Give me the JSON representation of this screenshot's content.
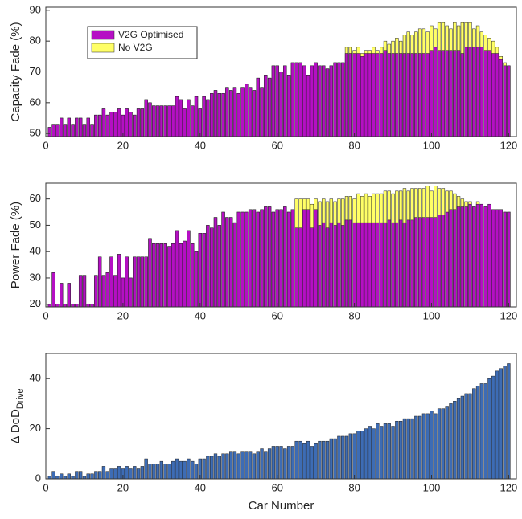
{
  "chart_data": [
    {
      "type": "bar",
      "ylabel": "Capacity Fade (%)",
      "legend": "upper left",
      "x": [
        1,
        2,
        3,
        4,
        5,
        6,
        7,
        8,
        9,
        10,
        11,
        12,
        13,
        14,
        15,
        16,
        17,
        18,
        19,
        20,
        21,
        22,
        23,
        24,
        25,
        26,
        27,
        28,
        29,
        30,
        31,
        32,
        33,
        34,
        35,
        36,
        37,
        38,
        39,
        40,
        41,
        42,
        43,
        44,
        45,
        46,
        47,
        48,
        49,
        50,
        51,
        52,
        53,
        54,
        55,
        56,
        57,
        58,
        59,
        60,
        61,
        62,
        63,
        64,
        65,
        66,
        67,
        68,
        69,
        70,
        71,
        72,
        73,
        74,
        75,
        76,
        77,
        78,
        79,
        80,
        81,
        82,
        83,
        84,
        85,
        86,
        87,
        88,
        89,
        90,
        91,
        92,
        93,
        94,
        95,
        96,
        97,
        98,
        99,
        100,
        101,
        102,
        103,
        104,
        105,
        106,
        107,
        108,
        109,
        110,
        111,
        112,
        113,
        114,
        115,
        116,
        117,
        118,
        119,
        120
      ],
      "series": [
        {
          "name": "V2G Optimised",
          "color": "#b50fc4",
          "values": [
            52,
            53,
            53,
            55,
            53,
            55,
            53,
            55,
            55,
            53,
            55,
            53,
            56,
            56,
            58,
            56,
            57,
            57,
            58,
            56,
            58,
            57,
            56,
            58,
            58,
            61,
            60,
            59,
            59,
            59,
            59,
            59,
            59,
            62,
            61,
            58,
            61,
            59,
            62,
            58,
            62,
            61,
            63,
            64,
            63,
            63,
            65,
            64,
            65,
            63,
            65,
            66,
            65,
            64,
            68,
            65,
            69,
            68,
            72,
            72,
            70,
            72,
            69,
            73,
            73,
            73,
            72,
            69,
            72,
            73,
            72,
            72,
            71,
            72,
            73,
            73,
            73,
            76,
            76,
            76,
            76,
            75,
            76,
            76,
            76,
            76,
            76,
            77,
            76,
            76,
            76,
            76,
            76,
            76,
            76,
            76,
            76,
            76,
            76,
            77,
            78,
            77,
            77,
            77,
            77,
            77,
            77,
            76,
            78,
            78,
            78,
            78,
            78,
            77,
            77,
            76,
            76,
            74,
            72,
            72
          ]
        },
        {
          "name": "No V2G",
          "color": "#ffff66",
          "values": [
            52,
            53,
            53,
            55,
            53,
            55,
            53,
            55,
            55,
            53,
            55,
            53,
            56,
            56,
            58,
            56,
            57,
            57,
            58,
            56,
            58,
            57,
            56,
            58,
            58,
            61,
            60,
            59,
            59,
            59,
            59,
            59,
            59,
            62,
            61,
            58,
            61,
            59,
            62,
            58,
            62,
            61,
            63,
            64,
            63,
            63,
            65,
            64,
            65,
            63,
            65,
            66,
            65,
            64,
            68,
            65,
            69,
            68,
            72,
            72,
            70,
            72,
            69,
            73,
            73,
            73,
            72,
            69,
            72,
            73,
            72,
            72,
            71,
            72,
            73,
            73,
            73,
            78,
            78,
            77,
            78,
            76,
            77,
            77,
            78,
            77,
            78,
            80,
            79,
            80,
            81,
            80,
            82,
            83,
            82,
            83,
            84,
            84,
            83,
            85,
            84,
            86,
            86,
            85,
            84,
            86,
            85,
            86,
            86,
            86,
            84,
            85,
            83,
            82,
            81,
            80,
            78,
            75,
            73,
            72
          ]
        }
      ],
      "xlim": [
        0,
        122
      ],
      "ylim": [
        49,
        91
      ],
      "xticks": [
        0,
        20,
        40,
        60,
        80,
        100,
        120
      ],
      "yticks": [
        50,
        60,
        70,
        80,
        90
      ]
    },
    {
      "type": "bar",
      "ylabel": "Power Fade (%)",
      "x": [
        1,
        2,
        3,
        4,
        5,
        6,
        7,
        8,
        9,
        10,
        11,
        12,
        13,
        14,
        15,
        16,
        17,
        18,
        19,
        20,
        21,
        22,
        23,
        24,
        25,
        26,
        27,
        28,
        29,
        30,
        31,
        32,
        33,
        34,
        35,
        36,
        37,
        38,
        39,
        40,
        41,
        42,
        43,
        44,
        45,
        46,
        47,
        48,
        49,
        50,
        51,
        52,
        53,
        54,
        55,
        56,
        57,
        58,
        59,
        60,
        61,
        62,
        63,
        64,
        65,
        66,
        67,
        68,
        69,
        70,
        71,
        72,
        73,
        74,
        75,
        76,
        77,
        78,
        79,
        80,
        81,
        82,
        83,
        84,
        85,
        86,
        87,
        88,
        89,
        90,
        91,
        92,
        93,
        94,
        95,
        96,
        97,
        98,
        99,
        100,
        101,
        102,
        103,
        104,
        105,
        106,
        107,
        108,
        109,
        110,
        111,
        112,
        113,
        114,
        115,
        116,
        117,
        118,
        119,
        120
      ],
      "series": [
        {
          "name": "V2G Optimised",
          "color": "#b50fc4",
          "values": [
            20,
            32,
            20,
            28,
            20,
            28,
            20,
            20,
            31,
            31,
            20,
            20,
            31,
            38,
            31,
            32,
            38,
            31,
            39,
            30,
            38,
            30,
            38,
            38,
            38,
            38,
            45,
            43,
            43,
            43,
            43,
            42,
            43,
            48,
            43,
            44,
            48,
            43,
            40,
            47,
            47,
            50,
            49,
            53,
            50,
            55,
            53,
            53,
            51,
            55,
            55,
            55,
            56,
            56,
            55,
            56,
            57,
            57,
            55,
            56,
            56,
            57,
            55,
            56,
            49,
            49,
            56,
            56,
            49,
            56,
            50,
            51,
            49,
            51,
            50,
            51,
            50,
            52,
            52,
            51,
            51,
            51,
            51,
            51,
            51,
            51,
            51,
            51,
            52,
            51,
            51,
            52,
            51,
            52,
            52,
            53,
            53,
            53,
            53,
            53,
            53,
            54,
            54,
            55,
            56,
            56,
            57,
            57,
            57,
            58,
            57,
            58,
            58,
            57,
            58,
            56,
            56,
            56,
            55,
            55
          ]
        },
        {
          "name": "No V2G",
          "color": "#ffff66",
          "values": [
            20,
            32,
            20,
            28,
            20,
            28,
            20,
            20,
            31,
            31,
            20,
            20,
            31,
            38,
            31,
            32,
            38,
            31,
            39,
            30,
            38,
            30,
            38,
            38,
            38,
            38,
            45,
            43,
            43,
            43,
            43,
            42,
            43,
            48,
            43,
            44,
            48,
            43,
            40,
            47,
            47,
            50,
            49,
            53,
            50,
            55,
            53,
            53,
            51,
            55,
            55,
            55,
            56,
            56,
            55,
            56,
            57,
            57,
            55,
            56,
            56,
            57,
            55,
            56,
            60,
            60,
            60,
            60,
            58,
            60,
            59,
            60,
            59,
            60,
            59,
            60,
            60,
            61,
            61,
            60,
            62,
            61,
            62,
            61,
            62,
            62,
            62,
            63,
            63,
            62,
            63,
            63,
            64,
            63,
            64,
            64,
            64,
            64,
            65,
            63,
            65,
            64,
            64,
            63,
            63,
            62,
            61,
            60,
            59,
            59,
            57,
            59,
            58,
            57,
            57,
            56,
            56,
            56,
            55,
            55
          ]
        }
      ],
      "xlim": [
        0,
        122
      ],
      "ylim": [
        19,
        66
      ],
      "xticks": [
        0,
        20,
        40,
        60,
        80,
        100,
        120
      ],
      "yticks": [
        20,
        30,
        40,
        50,
        60
      ]
    },
    {
      "type": "bar",
      "ylabel": "Δ DoD",
      "ylabel_subscript": "Drive",
      "xlabel": "Car Number",
      "x": [
        1,
        2,
        3,
        4,
        5,
        6,
        7,
        8,
        9,
        10,
        11,
        12,
        13,
        14,
        15,
        16,
        17,
        18,
        19,
        20,
        21,
        22,
        23,
        24,
        25,
        26,
        27,
        28,
        29,
        30,
        31,
        32,
        33,
        34,
        35,
        36,
        37,
        38,
        39,
        40,
        41,
        42,
        43,
        44,
        45,
        46,
        47,
        48,
        49,
        50,
        51,
        52,
        53,
        54,
        55,
        56,
        57,
        58,
        59,
        60,
        61,
        62,
        63,
        64,
        65,
        66,
        67,
        68,
        69,
        70,
        71,
        72,
        73,
        74,
        75,
        76,
        77,
        78,
        79,
        80,
        81,
        82,
        83,
        84,
        85,
        86,
        87,
        88,
        89,
        90,
        91,
        92,
        93,
        94,
        95,
        96,
        97,
        98,
        99,
        100,
        101,
        102,
        103,
        104,
        105,
        106,
        107,
        108,
        109,
        110,
        111,
        112,
        113,
        114,
        115,
        116,
        117,
        118,
        119,
        120
      ],
      "series": [
        {
          "name": "Δ DoD",
          "color": "#3d6cb5",
          "values": [
            1,
            3,
            1,
            2,
            1,
            2,
            1,
            3,
            3,
            1,
            2,
            2,
            3,
            3,
            5,
            3,
            4,
            4,
            5,
            4,
            5,
            4,
            5,
            4,
            5,
            8,
            6,
            6,
            6,
            7,
            6,
            6,
            7,
            8,
            7,
            7,
            8,
            7,
            6,
            8,
            8,
            9,
            9,
            10,
            9,
            10,
            10,
            11,
            11,
            10,
            11,
            11,
            11,
            10,
            11,
            12,
            11,
            12,
            13,
            13,
            13,
            12,
            13,
            13,
            15,
            15,
            14,
            15,
            13,
            14,
            15,
            15,
            15,
            16,
            16,
            17,
            17,
            17,
            18,
            18,
            19,
            19,
            20,
            21,
            20,
            22,
            21,
            22,
            22,
            21,
            23,
            23,
            24,
            24,
            24,
            25,
            25,
            26,
            26,
            27,
            26,
            28,
            28,
            29,
            30,
            31,
            32,
            33,
            34,
            34,
            36,
            37,
            38,
            38,
            40,
            41,
            43,
            44,
            45,
            46
          ]
        }
      ],
      "xlim": [
        0,
        122
      ],
      "ylim": [
        0,
        50
      ],
      "xticks": [
        0,
        20,
        40,
        60,
        80,
        100,
        120
      ],
      "yticks": [
        0,
        20,
        40
      ]
    }
  ]
}
